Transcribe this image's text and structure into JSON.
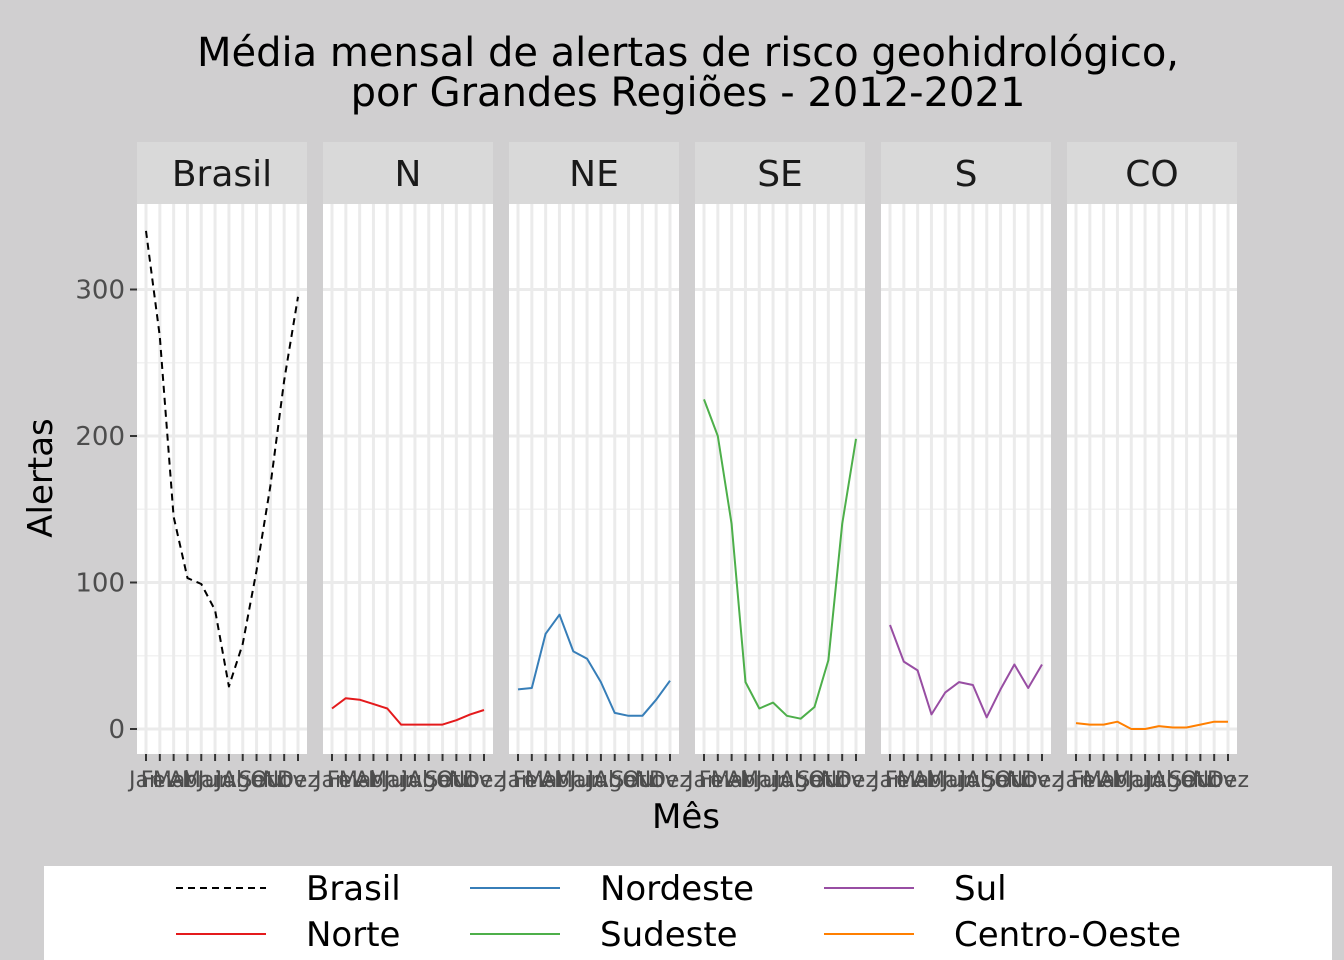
{
  "chart_data": {
    "type": "line",
    "title": [
      "Média mensal de alertas de risco geohidrológico,",
      "por Grandes Regiões - 2012-2021"
    ],
    "xlabel": "Mês",
    "ylabel": "Alertas",
    "ylim": [
      -15,
      360
    ],
    "yticks": [
      0,
      100,
      200,
      300
    ],
    "grid": true,
    "legend_position": "bottom",
    "categories": [
      "Jan",
      "Fev",
      "Mar",
      "Abr",
      "Mai",
      "Jun",
      "Jul",
      "Ago",
      "Set",
      "Out",
      "Nov",
      "Dez"
    ],
    "panels": [
      "Brasil",
      "N",
      "NE",
      "SE",
      "S",
      "CO"
    ],
    "series": [
      {
        "name": "Brasil",
        "panel": 0,
        "color": "#000000",
        "dash": true,
        "values": [
          340,
          268,
          145,
          103,
          99,
          81,
          29,
          58,
          108,
          166,
          238,
          295
        ]
      },
      {
        "name": "Norte",
        "panel": 1,
        "color": "#e41a1c",
        "dash": false,
        "values": [
          14,
          21,
          20,
          17,
          14,
          3,
          3,
          3,
          3,
          6,
          10,
          13
        ]
      },
      {
        "name": "Nordeste",
        "panel": 2,
        "color": "#377eb8",
        "dash": false,
        "values": [
          27,
          28,
          65,
          78,
          53,
          48,
          32,
          11,
          9,
          9,
          20,
          33
        ]
      },
      {
        "name": "Sudeste",
        "panel": 3,
        "color": "#4daf4a",
        "dash": false,
        "values": [
          225,
          200,
          140,
          32,
          14,
          18,
          9,
          7,
          15,
          47,
          140,
          198
        ]
      },
      {
        "name": "Sul",
        "panel": 4,
        "color": "#984ea3",
        "dash": false,
        "values": [
          71,
          46,
          40,
          10,
          25,
          32,
          30,
          8,
          27,
          44,
          28,
          44
        ]
      },
      {
        "name": "Centro-Oeste",
        "panel": 5,
        "color": "#ff7f00",
        "dash": false,
        "values": [
          4,
          3,
          3,
          5,
          0,
          0,
          2,
          1,
          1,
          3,
          5,
          5
        ]
      }
    ],
    "legend": [
      [
        "Brasil",
        "Norte"
      ],
      [
        "Nordeste",
        "Sudeste"
      ],
      [
        "Sul",
        "Centro-Oeste"
      ]
    ]
  }
}
